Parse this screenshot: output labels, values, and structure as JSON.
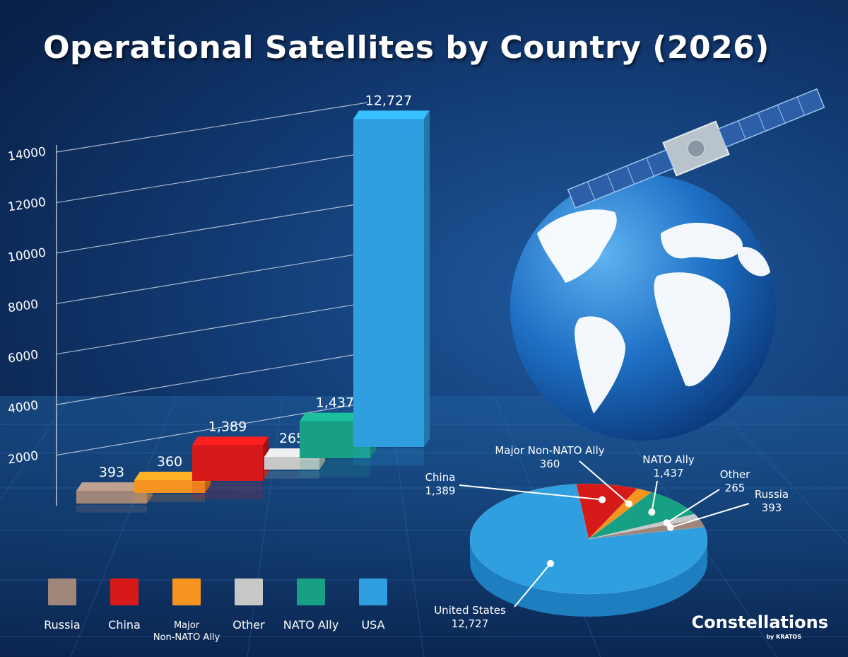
{
  "chart_data": {
    "type": "bar",
    "title": "Operational Satellites by Country (2026)",
    "yticks": [
      "2000",
      "4000",
      "6000",
      "8000",
      "10000",
      "12000",
      "14000"
    ],
    "ylim": [
      0,
      14000
    ],
    "categories": [
      "Russia",
      "China",
      "Major Non-NATO Ally",
      "Other",
      "NATO Ally",
      "USA"
    ],
    "values": [
      393,
      1389,
      360,
      265,
      1437,
      12727
    ],
    "bar_value_labels": [
      "393",
      "360",
      "1,389",
      "265",
      "1,437",
      "12,727"
    ],
    "bar_order": [
      "Russia",
      "Major Non-NATO Ally",
      "China",
      "Other",
      "NATO Ally",
      "USA"
    ],
    "colors": {
      "Russia": "#a08678",
      "China": "#d61a1a",
      "Major Non-NATO Ally": "#f5951f",
      "Other": "#c8c8c8",
      "NATO Ally": "#17a084",
      "USA": "#2f9fe0"
    },
    "pie": {
      "type": "pie",
      "slices": [
        {
          "name": "United States",
          "label": "United States\n12,727",
          "value": 12727
        },
        {
          "name": "China",
          "label": "China\n1,389",
          "value": 1389
        },
        {
          "name": "Major Non-NATO Ally",
          "label": "Major Non-NATO Ally\n360",
          "value": 360
        },
        {
          "name": "NATO Ally",
          "label": "NATO Ally\n1,437",
          "value": 1437
        },
        {
          "name": "Other",
          "label": "Other\n265",
          "value": 265
        },
        {
          "name": "Russia",
          "label": "Russia\n393",
          "value": 393
        }
      ]
    },
    "legend": [
      {
        "label": "Russia",
        "color": "#a08678"
      },
      {
        "label": "China",
        "color": "#d61a1a"
      },
      {
        "label": "Major\nNon-NATO Ally",
        "color": "#f5951f"
      },
      {
        "label": "Other",
        "color": "#c8c8c8"
      },
      {
        "label": "NATO Ally",
        "color": "#17a084"
      },
      {
        "label": "USA",
        "color": "#2f9fe0"
      }
    ],
    "legend_placement": "bottom-left"
  },
  "brand": {
    "name": "Constellations",
    "sub": "by KRATOS"
  }
}
